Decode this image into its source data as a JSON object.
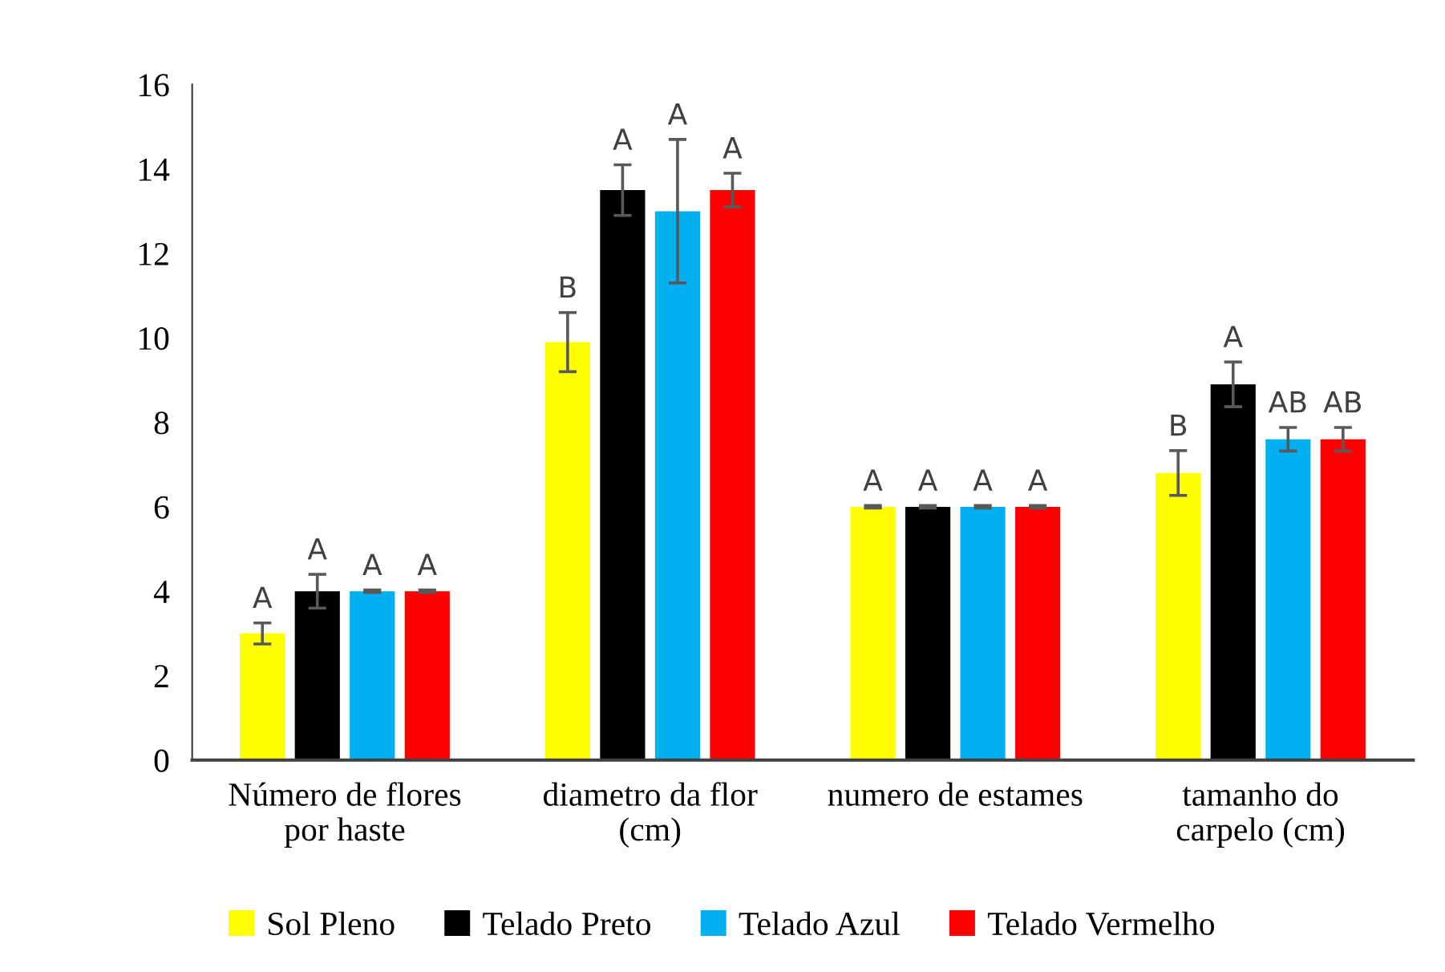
{
  "chart_data": {
    "type": "bar",
    "categories": [
      "Número de flores\npor haste",
      "diametro da flor\n(cm)",
      "numero de estames",
      "tamanho do\ncarpelo (cm)"
    ],
    "series": [
      {
        "name": "Sol Pleno",
        "color": "#ffff00",
        "values": [
          3.0,
          9.9,
          6.0,
          6.8
        ],
        "errors": [
          0.25,
          0.7,
          0.03,
          0.53
        ],
        "value_labels": [
          "A",
          "B",
          "A",
          "B"
        ]
      },
      {
        "name": "Telado Preto",
        "color": "#000000",
        "values": [
          4.0,
          13.5,
          6.0,
          8.9
        ],
        "errors": [
          0.4,
          0.6,
          0.03,
          0.53
        ],
        "value_labels": [
          "A",
          "A",
          "A",
          "A"
        ]
      },
      {
        "name": "Telado Azul",
        "color": "#00b0f0",
        "values": [
          4.0,
          13.0,
          6.0,
          7.6
        ],
        "errors": [
          0.03,
          1.7,
          0.03,
          0.28
        ],
        "value_labels": [
          "A",
          "A",
          "A",
          "AB"
        ]
      },
      {
        "name": "Telado Vermelho",
        "color": "#ff0000",
        "values": [
          4.0,
          13.5,
          6.0,
          7.6
        ],
        "errors": [
          0.03,
          0.4,
          0.03,
          0.28
        ],
        "value_labels": [
          "A",
          "A",
          "A",
          "AB"
        ]
      }
    ],
    "ylim": [
      0,
      16
    ],
    "yticks": [
      0,
      2,
      4,
      6,
      8,
      10,
      12,
      14,
      16
    ],
    "grid": false,
    "legend": "bottom"
  }
}
